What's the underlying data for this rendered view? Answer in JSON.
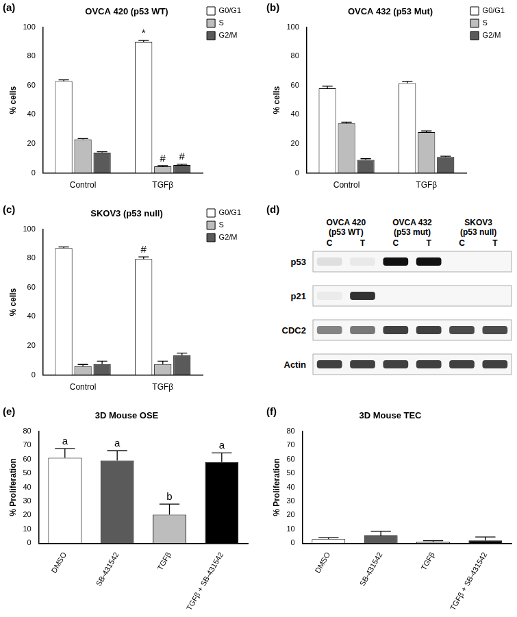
{
  "chart_data": [
    {
      "panel": "(a)",
      "type": "bar",
      "title": "OVCA 420 (p53 WT)",
      "y_label": "% cells",
      "categories": [
        "Control",
        "TGFβ"
      ],
      "series": [
        {
          "name": "G0/G1",
          "color": "#ffffff",
          "values": [
            63,
            90
          ],
          "errors": [
            0.8,
            0.8
          ]
        },
        {
          "name": "S",
          "color": "#bdbdbd",
          "values": [
            23,
            4.5
          ],
          "errors": [
            0.6,
            0.5
          ]
        },
        {
          "name": "G2/M",
          "color": "#5a5a5a",
          "values": [
            14,
            5.5
          ],
          "errors": [
            0.5,
            0.5
          ]
        }
      ],
      "annotations": [
        {
          "category": "TGFβ",
          "series": "G0/G1",
          "text": "*"
        },
        {
          "category": "TGFβ",
          "series": "S",
          "text": "#"
        },
        {
          "category": "TGFβ",
          "series": "G2/M",
          "text": "#"
        }
      ],
      "ylim": [
        0,
        100
      ],
      "yticks": [
        0,
        20,
        40,
        60,
        80,
        100
      ],
      "grid": false,
      "legend": "upper right"
    },
    {
      "panel": "(b)",
      "type": "bar",
      "title": "OVCA 432 (p53 Mut)",
      "y_label": "% cells",
      "categories": [
        "Control",
        "TGFβ"
      ],
      "series": [
        {
          "name": "G0/G1",
          "color": "#ffffff",
          "values": [
            58,
            61.5
          ],
          "errors": [
            1.5,
            1.3
          ]
        },
        {
          "name": "S",
          "color": "#bdbdbd",
          "values": [
            34,
            28
          ],
          "errors": [
            0.8,
            0.8
          ]
        },
        {
          "name": "G2/M",
          "color": "#5a5a5a",
          "values": [
            9,
            11
          ],
          "errors": [
            0.8,
            0.5
          ]
        }
      ],
      "annotations": [],
      "ylim": [
        0,
        100
      ],
      "yticks": [
        0,
        20,
        40,
        60,
        80,
        100
      ],
      "grid": false,
      "legend": "upper right"
    },
    {
      "panel": "(c)",
      "type": "bar",
      "title": "SKOV3 (p53 null)",
      "y_label": "% cells",
      "categories": [
        "Control",
        "TGFβ"
      ],
      "series": [
        {
          "name": "G0/G1",
          "color": "#ffffff",
          "values": [
            87,
            79.5
          ],
          "errors": [
            0.8,
            1.5
          ]
        },
        {
          "name": "S",
          "color": "#bdbdbd",
          "values": [
            6,
            7.5
          ],
          "errors": [
            1.2,
            2
          ]
        },
        {
          "name": "G2/M",
          "color": "#5a5a5a",
          "values": [
            7.5,
            13.5
          ],
          "errors": [
            2,
            1.5
          ]
        }
      ],
      "annotations": [
        {
          "category": "TGFβ",
          "series": "G0/G1",
          "text": "#"
        }
      ],
      "ylim": [
        0,
        100
      ],
      "yticks": [
        0,
        20,
        40,
        60,
        80,
        100
      ],
      "grid": false,
      "legend": "upper right"
    },
    {
      "panel": "(e)",
      "type": "bar",
      "title": "3D Mouse OSE",
      "y_label": "% Proliferation",
      "categories": [
        "DMSO",
        "SB-431542",
        "TGFβ",
        "TGFβ + SB-431542"
      ],
      "values": [
        61,
        59,
        20.5,
        58
      ],
      "errors": [
        6.5,
        7,
        7.5,
        6.5
      ],
      "colors": [
        "#ffffff",
        "#5a5a5a",
        "#bdbdbd",
        "#000000"
      ],
      "annotations": [
        {
          "category": "DMSO",
          "text": "a"
        },
        {
          "category": "SB-431542",
          "text": "a"
        },
        {
          "category": "TGFβ",
          "text": "b"
        },
        {
          "category": "TGFβ + SB-431542",
          "text": "a"
        }
      ],
      "ylim": [
        0,
        80
      ],
      "yticks": [
        0,
        10,
        20,
        30,
        40,
        50,
        60,
        70,
        80
      ],
      "grid": false
    },
    {
      "panel": "(f)",
      "type": "bar",
      "title": "3D Mouse TEC",
      "y_label": "% Proliferation",
      "categories": [
        "DMSO",
        "SB-431542",
        "TGFβ",
        "TGFβ + SB-431542"
      ],
      "values": [
        3,
        5.5,
        1,
        2
      ],
      "errors": [
        1,
        3,
        0.8,
        2.5
      ],
      "colors": [
        "#ffffff",
        "#5a5a5a",
        "#bdbdbd",
        "#000000"
      ],
      "annotations": [],
      "ylim": [
        0,
        80
      ],
      "yticks": [
        0,
        10,
        20,
        30,
        40,
        50,
        60,
        70,
        80
      ],
      "grid": false
    }
  ],
  "blot": {
    "panel": "(d)",
    "type": "western_blot",
    "groups": [
      {
        "name": "OVCA 420",
        "subtitle": "(p53 WT)",
        "lanes": [
          "C",
          "T"
        ]
      },
      {
        "name": "OVCA 432",
        "subtitle": "(p53 mut)",
        "lanes": [
          "C",
          "T"
        ]
      },
      {
        "name": "SKOV3",
        "subtitle": "(p53 null)",
        "lanes": [
          "C",
          "T"
        ]
      }
    ],
    "rows": [
      {
        "name": "p53",
        "intensity": [
          0.1,
          0.06,
          1,
          1,
          0,
          0
        ]
      },
      {
        "name": "p21",
        "intensity": [
          0.05,
          0.85,
          0,
          0,
          0,
          0
        ]
      },
      {
        "name": "CDC2",
        "intensity": [
          0.5,
          0.55,
          0.8,
          0.8,
          0.75,
          0.75
        ]
      },
      {
        "name": "Actin",
        "intensity": [
          0.8,
          0.8,
          0.8,
          0.8,
          0.8,
          0.8
        ]
      }
    ]
  }
}
